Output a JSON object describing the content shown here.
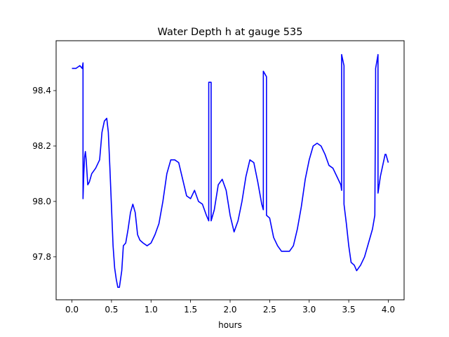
{
  "chart_data": {
    "type": "line",
    "title": "Water Depth h at gauge 535",
    "xlabel": "hours",
    "ylabel": "",
    "xlim": [
      -0.2,
      4.2
    ],
    "ylim": [
      97.645,
      98.58
    ],
    "xticks": [
      0.0,
      0.5,
      1.0,
      1.5,
      2.0,
      2.5,
      3.0,
      3.5,
      4.0
    ],
    "xtick_labels": [
      "0.0",
      "0.5",
      "1.0",
      "1.5",
      "2.0",
      "2.5",
      "3.0",
      "3.5",
      "4.0"
    ],
    "yticks": [
      97.8,
      98.0,
      98.2,
      98.4
    ],
    "ytick_labels": [
      "97.8",
      "98.0",
      "98.2",
      "98.4"
    ],
    "grid": false,
    "color": "#0000ff",
    "series": [
      {
        "x": [
          0.0,
          0.05,
          0.1,
          0.13,
          0.14,
          0.14,
          0.15,
          0.16,
          0.17,
          0.18,
          0.2,
          0.22,
          0.25,
          0.3,
          0.35,
          0.38,
          0.41,
          0.44,
          0.46,
          0.48,
          0.5,
          0.52,
          0.54,
          0.56,
          0.58,
          0.6,
          0.61,
          0.63,
          0.65,
          0.68,
          0.71,
          0.74,
          0.77,
          0.8,
          0.83,
          0.86,
          0.9,
          0.95,
          1.0,
          1.05,
          1.1,
          1.15,
          1.2,
          1.25,
          1.3,
          1.35,
          1.4,
          1.45,
          1.5,
          1.55,
          1.6,
          1.65,
          1.7,
          1.73,
          1.73,
          1.76,
          1.76,
          1.8,
          1.85,
          1.9,
          1.95,
          2.0,
          2.05,
          2.1,
          2.15,
          2.2,
          2.25,
          2.3,
          2.35,
          2.4,
          2.42,
          2.42,
          2.46,
          2.46,
          2.5,
          2.55,
          2.6,
          2.65,
          2.7,
          2.75,
          2.8,
          2.85,
          2.9,
          2.95,
          3.0,
          3.05,
          3.1,
          3.15,
          3.2,
          3.25,
          3.3,
          3.35,
          3.4,
          3.41,
          3.41,
          3.44,
          3.44,
          3.47,
          3.5,
          3.53,
          3.57,
          3.6,
          3.65,
          3.7,
          3.75,
          3.8,
          3.83,
          3.84,
          3.84,
          3.87,
          3.87,
          3.9,
          3.93,
          3.96,
          3.97,
          4.0
        ],
        "y": [
          98.48,
          98.48,
          98.49,
          98.48,
          98.5,
          98.01,
          98.1,
          98.16,
          98.18,
          98.15,
          98.06,
          98.07,
          98.1,
          98.12,
          98.15,
          98.25,
          98.29,
          98.3,
          98.25,
          98.12,
          97.98,
          97.84,
          97.76,
          97.72,
          97.69,
          97.69,
          97.71,
          97.75,
          97.84,
          97.85,
          97.9,
          97.96,
          97.99,
          97.96,
          97.88,
          97.86,
          97.85,
          97.84,
          97.85,
          97.88,
          97.92,
          98.0,
          98.1,
          98.15,
          98.15,
          98.14,
          98.08,
          98.02,
          98.01,
          98.04,
          98.0,
          97.99,
          97.95,
          97.93,
          98.43,
          98.43,
          97.93,
          97.97,
          98.06,
          98.08,
          98.04,
          97.95,
          97.89,
          97.93,
          98.0,
          98.09,
          98.15,
          98.14,
          98.07,
          97.99,
          97.97,
          98.47,
          98.45,
          97.95,
          97.94,
          97.87,
          97.84,
          97.82,
          97.82,
          97.82,
          97.84,
          97.9,
          97.98,
          98.08,
          98.15,
          98.2,
          98.21,
          98.2,
          98.17,
          98.13,
          98.12,
          98.09,
          98.06,
          98.04,
          98.53,
          98.49,
          97.99,
          97.92,
          97.84,
          97.78,
          97.77,
          97.75,
          97.77,
          97.8,
          97.85,
          97.9,
          97.95,
          98.44,
          98.48,
          98.53,
          98.03,
          98.09,
          98.13,
          98.17,
          98.17,
          98.14
        ]
      }
    ]
  }
}
